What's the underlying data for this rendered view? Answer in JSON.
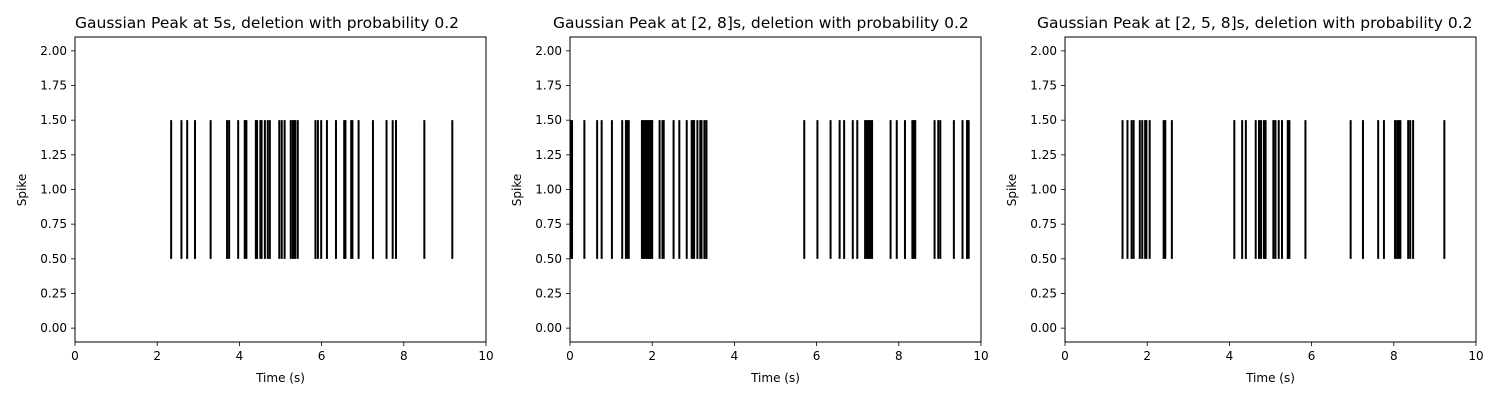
{
  "chart_data": [
    {
      "type": "eventplot",
      "title": "Gaussian Peak at 5s, deletion with probability 0.2",
      "xlabel": "Time (s)",
      "ylabel": "Spike",
      "xlim": [
        0,
        10
      ],
      "ylim": [
        -0.1,
        2.1
      ],
      "xticks": [
        0,
        2,
        4,
        6,
        8,
        10
      ],
      "yticks": [
        0.0,
        0.25,
        0.5,
        0.75,
        1.0,
        1.25,
        1.5,
        1.75,
        2.0
      ],
      "xtick_labels": [
        "0",
        "2",
        "4",
        "6",
        "8",
        "10"
      ],
      "ytick_labels": [
        "0.00",
        "0.25",
        "0.50",
        "0.75",
        "1.00",
        "1.25",
        "1.50",
        "1.75",
        "2.00"
      ],
      "line_center": 1.0,
      "line_length": 1.0,
      "grid": false,
      "spike_times": [
        2.34,
        2.59,
        2.73,
        2.92,
        3.3,
        3.7,
        3.75,
        3.97,
        4.13,
        4.17,
        4.4,
        4.43,
        4.51,
        4.54,
        4.62,
        4.69,
        4.74,
        4.97,
        5.03,
        5.1,
        5.25,
        5.3,
        5.33,
        5.36,
        5.42,
        5.85,
        5.91,
        5.99,
        6.13,
        6.35,
        6.55,
        6.58,
        6.72,
        6.75,
        6.9,
        7.25,
        7.58,
        7.73,
        7.81,
        8.5,
        9.18
      ]
    },
    {
      "type": "eventplot",
      "title": "Gaussian Peak at [2, 8]s, deletion with probability 0.2",
      "xlabel": "Time (s)",
      "ylabel": "Spike",
      "xlim": [
        0,
        10
      ],
      "ylim": [
        -0.1,
        2.1
      ],
      "xticks": [
        0,
        2,
        4,
        6,
        8,
        10
      ],
      "yticks": [
        0.0,
        0.25,
        0.5,
        0.75,
        1.0,
        1.25,
        1.5,
        1.75,
        2.0
      ],
      "xtick_labels": [
        "0",
        "2",
        "4",
        "6",
        "8",
        "10"
      ],
      "ytick_labels": [
        "0.00",
        "0.25",
        "0.50",
        "0.75",
        "1.00",
        "1.25",
        "1.50",
        "1.75",
        "2.00"
      ],
      "line_center": 1.0,
      "line_length": 1.0,
      "grid": false,
      "spike_times": [
        0.02,
        0.05,
        0.35,
        0.66,
        0.77,
        1.02,
        1.27,
        1.36,
        1.4,
        1.43,
        1.75,
        1.78,
        1.82,
        1.85,
        1.88,
        1.91,
        1.94,
        1.97,
        2.0,
        2.18,
        2.25,
        2.28,
        2.52,
        2.66,
        2.84,
        2.96,
        3.0,
        3.02,
        3.1,
        3.17,
        3.2,
        3.27,
        3.32,
        5.7,
        6.02,
        6.34,
        6.56,
        6.67,
        6.88,
        6.99,
        7.18,
        7.21,
        7.25,
        7.28,
        7.31,
        7.35,
        7.8,
        7.95,
        8.15,
        8.33,
        8.36,
        8.4,
        8.87,
        8.96,
        9.01,
        9.34,
        9.55,
        9.66,
        9.7
      ]
    },
    {
      "type": "eventplot",
      "title": "Gaussian Peak at [2, 5, 8]s, deletion with probability 0.2",
      "xlabel": "Time (s)",
      "ylabel": "Spike",
      "xlim": [
        0,
        10
      ],
      "ylim": [
        -0.1,
        2.1
      ],
      "xticks": [
        0,
        2,
        4,
        6,
        8,
        10
      ],
      "yticks": [
        0.0,
        0.25,
        0.5,
        0.75,
        1.0,
        1.25,
        1.5,
        1.75,
        2.0
      ],
      "xtick_labels": [
        "0",
        "2",
        "4",
        "6",
        "8",
        "10"
      ],
      "ytick_labels": [
        "0.00",
        "0.25",
        "0.50",
        "0.75",
        "1.00",
        "1.25",
        "1.50",
        "1.75",
        "2.00"
      ],
      "line_center": 1.0,
      "line_length": 1.0,
      "grid": false,
      "spike_times": [
        1.4,
        1.52,
        1.62,
        1.67,
        1.82,
        1.88,
        1.95,
        1.98,
        2.06,
        2.4,
        2.44,
        2.6,
        4.12,
        4.31,
        4.4,
        4.64,
        4.72,
        4.77,
        4.84,
        4.88,
        5.07,
        5.12,
        5.2,
        5.28,
        5.42,
        5.46,
        5.85,
        6.95,
        7.25,
        7.62,
        7.76,
        8.03,
        8.08,
        8.12,
        8.16,
        8.35,
        8.4,
        8.47,
        9.23
      ]
    }
  ]
}
